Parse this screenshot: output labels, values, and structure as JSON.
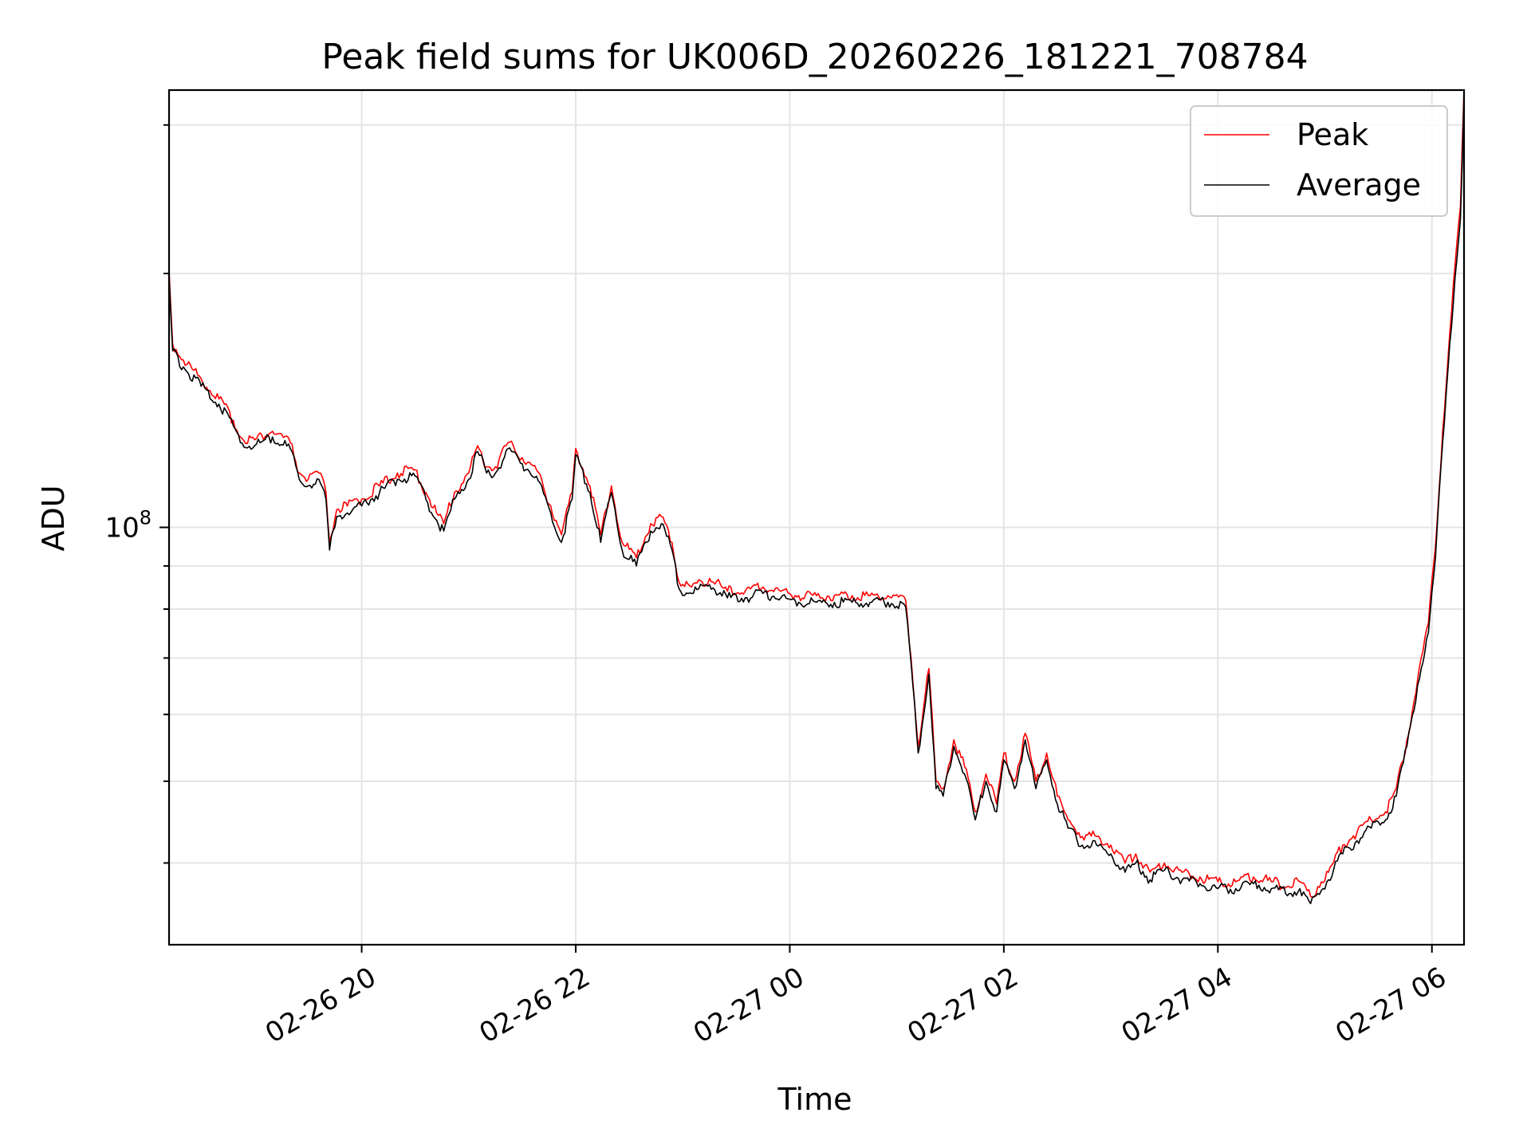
{
  "chart_data": {
    "type": "line",
    "title": "Peak field sums for UK006D_20260226_181221_708784",
    "xlabel": "Time",
    "ylabel": "ADU",
    "x_scale": "time",
    "y_scale": "log",
    "xlim": [
      "2026-02-26T18:12:00",
      "2026-02-27T06:18:00"
    ],
    "ylim": [
      32000000,
      330000000
    ],
    "x_ticks": [
      {
        "value": "2026-02-26T20:00:00",
        "label": "02-26 20"
      },
      {
        "value": "2026-02-26T22:00:00",
        "label": "02-26 22"
      },
      {
        "value": "2026-02-27T00:00:00",
        "label": "02-27 00"
      },
      {
        "value": "2026-02-27T02:00:00",
        "label": "02-27 02"
      },
      {
        "value": "2026-02-27T04:00:00",
        "label": "02-27 04"
      },
      {
        "value": "2026-02-27T06:00:00",
        "label": "02-27 06"
      }
    ],
    "y_major_ticks": [
      {
        "value": 100000000,
        "base": "10",
        "exp": "8"
      }
    ],
    "y_minor_ticks": [
      40000000,
      50000000,
      60000000,
      70000000,
      80000000,
      90000000,
      200000000,
      300000000
    ],
    "grid": true,
    "legend_position": "upper-right",
    "series": [
      {
        "name": "Peak",
        "color": "#ff0000",
        "points": [
          [
            "2026-02-26T18:12:00",
            202000000
          ],
          [
            "2026-02-26T18:14:00",
            165000000
          ],
          [
            "2026-02-26T18:20:00",
            158000000
          ],
          [
            "2026-02-26T18:30:00",
            150000000
          ],
          [
            "2026-02-26T18:40:00",
            142000000
          ],
          [
            "2026-02-26T18:48:00",
            134000000
          ],
          [
            "2026-02-26T18:52:00",
            128000000
          ],
          [
            "2026-02-26T19:00:00",
            127000000
          ],
          [
            "2026-02-26T19:10:00",
            130000000
          ],
          [
            "2026-02-26T19:20:00",
            126000000
          ],
          [
            "2026-02-26T19:25:00",
            116000000
          ],
          [
            "2026-02-26T19:30:00",
            114000000
          ],
          [
            "2026-02-26T19:36:00",
            116000000
          ],
          [
            "2026-02-26T19:40:00",
            110000000
          ],
          [
            "2026-02-26T19:42:00",
            96000000
          ],
          [
            "2026-02-26T19:46:00",
            105000000
          ],
          [
            "2026-02-26T19:52:00",
            106000000
          ],
          [
            "2026-02-26T20:00:00",
            108000000
          ],
          [
            "2026-02-26T20:10:00",
            112000000
          ],
          [
            "2026-02-26T20:20:00",
            116000000
          ],
          [
            "2026-02-26T20:30:00",
            117000000
          ],
          [
            "2026-02-26T20:36:00",
            110000000
          ],
          [
            "2026-02-26T20:42:00",
            104000000
          ],
          [
            "2026-02-26T20:46:00",
            101000000
          ],
          [
            "2026-02-26T20:52:00",
            110000000
          ],
          [
            "2026-02-26T21:00:00",
            116000000
          ],
          [
            "2026-02-26T21:05:00",
            125000000
          ],
          [
            "2026-02-26T21:10:00",
            118000000
          ],
          [
            "2026-02-26T21:15:00",
            118000000
          ],
          [
            "2026-02-26T21:22:00",
            126000000
          ],
          [
            "2026-02-26T21:30:00",
            121000000
          ],
          [
            "2026-02-26T21:38:00",
            117000000
          ],
          [
            "2026-02-26T21:46:00",
            106000000
          ],
          [
            "2026-02-26T21:52:00",
            98000000
          ],
          [
            "2026-02-26T21:58:00",
            110000000
          ],
          [
            "2026-02-26T22:00:00",
            124000000
          ],
          [
            "2026-02-26T22:08:00",
            112000000
          ],
          [
            "2026-02-26T22:14:00",
            98000000
          ],
          [
            "2026-02-26T22:20:00",
            112000000
          ],
          [
            "2026-02-26T22:26:00",
            96000000
          ],
          [
            "2026-02-26T22:34:00",
            92000000
          ],
          [
            "2026-02-26T22:42:00",
            101000000
          ],
          [
            "2026-02-26T22:48:00",
            103000000
          ],
          [
            "2026-02-26T22:54:00",
            96000000
          ],
          [
            "2026-02-26T22:58:00",
            86000000
          ],
          [
            "2026-02-26T23:05:00",
            85000000
          ],
          [
            "2026-02-26T23:15:00",
            87000000
          ],
          [
            "2026-02-26T23:25:00",
            84000000
          ],
          [
            "2026-02-26T23:35:00",
            84000000
          ],
          [
            "2026-02-26T23:45:00",
            85000000
          ],
          [
            "2026-02-26T23:55:00",
            84000000
          ],
          [
            "2026-02-27T00:05:00",
            83000000
          ],
          [
            "2026-02-27T00:15:00",
            83000000
          ],
          [
            "2026-02-27T00:25:00",
            83000000
          ],
          [
            "2026-02-27T00:35:00",
            83000000
          ],
          [
            "2026-02-27T00:45:00",
            83000000
          ],
          [
            "2026-02-27T00:55:00",
            83000000
          ],
          [
            "2026-02-27T01:05:00",
            82000000
          ],
          [
            "2026-02-27T01:08:00",
            70000000
          ],
          [
            "2026-02-27T01:12:00",
            55000000
          ],
          [
            "2026-02-27T01:18:00",
            68000000
          ],
          [
            "2026-02-27T01:22:00",
            50000000
          ],
          [
            "2026-02-27T01:26:00",
            49000000
          ],
          [
            "2026-02-27T01:32:00",
            56000000
          ],
          [
            "2026-02-27T01:38:00",
            52000000
          ],
          [
            "2026-02-27T01:44:00",
            46000000
          ],
          [
            "2026-02-27T01:50:00",
            51000000
          ],
          [
            "2026-02-27T01:56:00",
            47000000
          ],
          [
            "2026-02-27T02:00:00",
            54000000
          ],
          [
            "2026-02-27T02:06:00",
            50000000
          ],
          [
            "2026-02-27T02:12:00",
            57000000
          ],
          [
            "2026-02-27T02:18:00",
            50000000
          ],
          [
            "2026-02-27T02:24:00",
            54000000
          ],
          [
            "2026-02-27T02:30:00",
            48000000
          ],
          [
            "2026-02-27T02:36:00",
            45000000
          ],
          [
            "2026-02-27T02:44:00",
            43000000
          ],
          [
            "2026-02-27T02:52:00",
            43000000
          ],
          [
            "2026-02-27T03:00:00",
            42000000
          ],
          [
            "2026-02-27T03:08:00",
            40000000
          ],
          [
            "2026-02-27T03:14:00",
            41000000
          ],
          [
            "2026-02-27T03:22:00",
            39000000
          ],
          [
            "2026-02-27T03:30:00",
            40000000
          ],
          [
            "2026-02-27T03:40:00",
            39000000
          ],
          [
            "2026-02-27T03:50:00",
            38500000
          ],
          [
            "2026-02-27T04:00:00",
            38000000
          ],
          [
            "2026-02-27T04:10:00",
            38000000
          ],
          [
            "2026-02-27T04:20:00",
            38500000
          ],
          [
            "2026-02-27T04:30:00",
            38000000
          ],
          [
            "2026-02-27T04:40:00",
            37500000
          ],
          [
            "2026-02-27T04:46:00",
            38000000
          ],
          [
            "2026-02-27T04:52:00",
            36500000
          ],
          [
            "2026-02-27T04:56:00",
            37500000
          ],
          [
            "2026-02-27T05:02:00",
            39000000
          ],
          [
            "2026-02-27T05:10:00",
            42000000
          ],
          [
            "2026-02-27T05:18:00",
            43500000
          ],
          [
            "2026-02-27T05:26:00",
            45000000
          ],
          [
            "2026-02-27T05:34:00",
            46000000
          ],
          [
            "2026-02-27T05:40:00",
            49000000
          ],
          [
            "2026-02-27T05:46:00",
            56000000
          ],
          [
            "2026-02-27T05:52:00",
            66000000
          ],
          [
            "2026-02-27T05:58:00",
            77000000
          ],
          [
            "2026-02-27T06:02:00",
            95000000
          ],
          [
            "2026-02-27T06:06:00",
            130000000
          ],
          [
            "2026-02-27T06:10:00",
            170000000
          ],
          [
            "2026-02-27T06:13:00",
            205000000
          ],
          [
            "2026-02-27T06:16:00",
            240000000
          ],
          [
            "2026-02-27T06:18:00",
            330000000
          ]
        ]
      },
      {
        "name": "Average",
        "color": "#000000",
        "points": [
          [
            "2026-02-26T18:12:00",
            198000000
          ],
          [
            "2026-02-26T18:14:00",
            162000000
          ],
          [
            "2026-02-26T18:20:00",
            155000000
          ],
          [
            "2026-02-26T18:30:00",
            147000000
          ],
          [
            "2026-02-26T18:40:00",
            140000000
          ],
          [
            "2026-02-26T18:48:00",
            132000000
          ],
          [
            "2026-02-26T18:52:00",
            126000000
          ],
          [
            "2026-02-26T19:00:00",
            125000000
          ],
          [
            "2026-02-26T19:10:00",
            128000000
          ],
          [
            "2026-02-26T19:20:00",
            124000000
          ],
          [
            "2026-02-26T19:25:00",
            114000000
          ],
          [
            "2026-02-26T19:30:00",
            112000000
          ],
          [
            "2026-02-26T19:36:00",
            114000000
          ],
          [
            "2026-02-26T19:40:00",
            108000000
          ],
          [
            "2026-02-26T19:42:00",
            94000000
          ],
          [
            "2026-02-26T19:46:00",
            103000000
          ],
          [
            "2026-02-26T19:52:00",
            104000000
          ],
          [
            "2026-02-26T20:00:00",
            106000000
          ],
          [
            "2026-02-26T20:10:00",
            110000000
          ],
          [
            "2026-02-26T20:20:00",
            114000000
          ],
          [
            "2026-02-26T20:30:00",
            115000000
          ],
          [
            "2026-02-26T20:36:00",
            108000000
          ],
          [
            "2026-02-26T20:42:00",
            102000000
          ],
          [
            "2026-02-26T20:46:00",
            99000000
          ],
          [
            "2026-02-26T20:52:00",
            108000000
          ],
          [
            "2026-02-26T21:00:00",
            114000000
          ],
          [
            "2026-02-26T21:05:00",
            123000000
          ],
          [
            "2026-02-26T21:10:00",
            116000000
          ],
          [
            "2026-02-26T21:15:00",
            116000000
          ],
          [
            "2026-02-26T21:22:00",
            124000000
          ],
          [
            "2026-02-26T21:30:00",
            119000000
          ],
          [
            "2026-02-26T21:38:00",
            115000000
          ],
          [
            "2026-02-26T21:46:00",
            104000000
          ],
          [
            "2026-02-26T21:52:00",
            96000000
          ],
          [
            "2026-02-26T21:58:00",
            108000000
          ],
          [
            "2026-02-26T22:00:00",
            122000000
          ],
          [
            "2026-02-26T22:08:00",
            110000000
          ],
          [
            "2026-02-26T22:14:00",
            96000000
          ],
          [
            "2026-02-26T22:20:00",
            110000000
          ],
          [
            "2026-02-26T22:26:00",
            94000000
          ],
          [
            "2026-02-26T22:34:00",
            90000000
          ],
          [
            "2026-02-26T22:42:00",
            99000000
          ],
          [
            "2026-02-26T22:48:00",
            101000000
          ],
          [
            "2026-02-26T22:54:00",
            94000000
          ],
          [
            "2026-02-26T22:58:00",
            84500000
          ],
          [
            "2026-02-26T23:05:00",
            83500000
          ],
          [
            "2026-02-26T23:15:00",
            85500000
          ],
          [
            "2026-02-26T23:25:00",
            82500000
          ],
          [
            "2026-02-26T23:35:00",
            82500000
          ],
          [
            "2026-02-26T23:45:00",
            83500000
          ],
          [
            "2026-02-26T23:55:00",
            82500000
          ],
          [
            "2026-02-27T00:05:00",
            81500000
          ],
          [
            "2026-02-27T00:15:00",
            81500000
          ],
          [
            "2026-02-27T00:25:00",
            81500000
          ],
          [
            "2026-02-27T00:35:00",
            81500000
          ],
          [
            "2026-02-27T00:45:00",
            81500000
          ],
          [
            "2026-02-27T00:55:00",
            81500000
          ],
          [
            "2026-02-27T01:05:00",
            80500000
          ],
          [
            "2026-02-27T01:08:00",
            69000000
          ],
          [
            "2026-02-27T01:12:00",
            54000000
          ],
          [
            "2026-02-27T01:18:00",
            67000000
          ],
          [
            "2026-02-27T01:22:00",
            49000000
          ],
          [
            "2026-02-27T01:26:00",
            48000000
          ],
          [
            "2026-02-27T01:32:00",
            55000000
          ],
          [
            "2026-02-27T01:38:00",
            51000000
          ],
          [
            "2026-02-27T01:44:00",
            45000000
          ],
          [
            "2026-02-27T01:50:00",
            50000000
          ],
          [
            "2026-02-27T01:56:00",
            46000000
          ],
          [
            "2026-02-27T02:00:00",
            53000000
          ],
          [
            "2026-02-27T02:06:00",
            49000000
          ],
          [
            "2026-02-27T02:12:00",
            56000000
          ],
          [
            "2026-02-27T02:18:00",
            49000000
          ],
          [
            "2026-02-27T02:24:00",
            53000000
          ],
          [
            "2026-02-27T02:30:00",
            47000000
          ],
          [
            "2026-02-27T02:36:00",
            44000000
          ],
          [
            "2026-02-27T02:44:00",
            42000000
          ],
          [
            "2026-02-27T02:52:00",
            42000000
          ],
          [
            "2026-02-27T03:00:00",
            41000000
          ],
          [
            "2026-02-27T03:08:00",
            39000000
          ],
          [
            "2026-02-27T03:14:00",
            40000000
          ],
          [
            "2026-02-27T03:22:00",
            38200000
          ],
          [
            "2026-02-27T03:30:00",
            39200000
          ],
          [
            "2026-02-27T03:40:00",
            38200000
          ],
          [
            "2026-02-27T03:50:00",
            37800000
          ],
          [
            "2026-02-27T04:00:00",
            37300000
          ],
          [
            "2026-02-27T04:10:00",
            37300000
          ],
          [
            "2026-02-27T04:20:00",
            37800000
          ],
          [
            "2026-02-27T04:30:00",
            37300000
          ],
          [
            "2026-02-27T04:40:00",
            36800000
          ],
          [
            "2026-02-27T04:46:00",
            37300000
          ],
          [
            "2026-02-27T04:52:00",
            35800000
          ],
          [
            "2026-02-27T04:56:00",
            36800000
          ],
          [
            "2026-02-27T05:02:00",
            38200000
          ],
          [
            "2026-02-27T05:10:00",
            41000000
          ],
          [
            "2026-02-27T05:18:00",
            42500000
          ],
          [
            "2026-02-27T05:26:00",
            44000000
          ],
          [
            "2026-02-27T05:34:00",
            45000000
          ],
          [
            "2026-02-27T05:40:00",
            48000000
          ],
          [
            "2026-02-27T05:46:00",
            55000000
          ],
          [
            "2026-02-27T05:52:00",
            65000000
          ],
          [
            "2026-02-27T05:58:00",
            75000000
          ],
          [
            "2026-02-27T06:02:00",
            92000000
          ],
          [
            "2026-02-27T06:06:00",
            126000000
          ],
          [
            "2026-02-27T06:10:00",
            165000000
          ],
          [
            "2026-02-27T06:13:00",
            198000000
          ],
          [
            "2026-02-27T06:16:00",
            232000000
          ],
          [
            "2026-02-27T06:18:00",
            325000000
          ]
        ]
      }
    ]
  }
}
